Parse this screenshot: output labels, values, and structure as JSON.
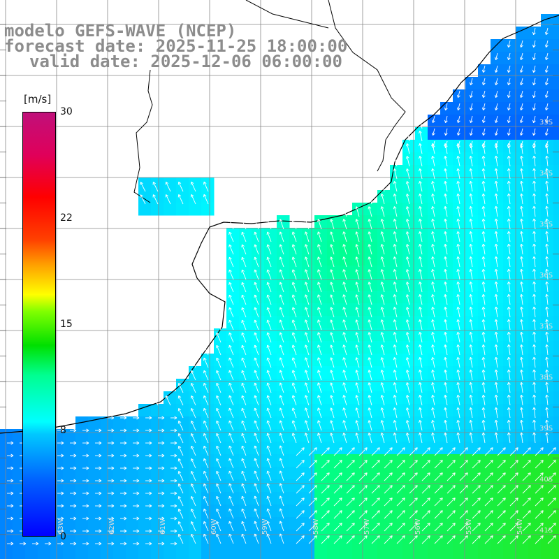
{
  "title": {
    "line1": "modelo GEFS-WAVE (NCEP)",
    "line2": "forecast date: 2025-11-25 18:00:00",
    "line3": "valid date: 2025-12-06 06:00:00"
  },
  "colorbar": {
    "unit": "[m/s]",
    "ticks": [
      "30",
      "22",
      "15",
      "8",
      "0"
    ],
    "min": 0,
    "max": 30
  },
  "lat_labels": [
    "33S",
    "34S",
    "35S",
    "36S",
    "37S",
    "38S",
    "39S",
    "40S",
    "41S"
  ],
  "lon_labels": [
    "63W",
    "62W",
    "61W",
    "60W",
    "59W",
    "58W",
    "57W",
    "56W",
    "55W",
    "54W"
  ],
  "colors": {
    "land": "#ffffff",
    "grid": "#888888",
    "coast": "#000000",
    "title": "#8c8c8c"
  }
}
